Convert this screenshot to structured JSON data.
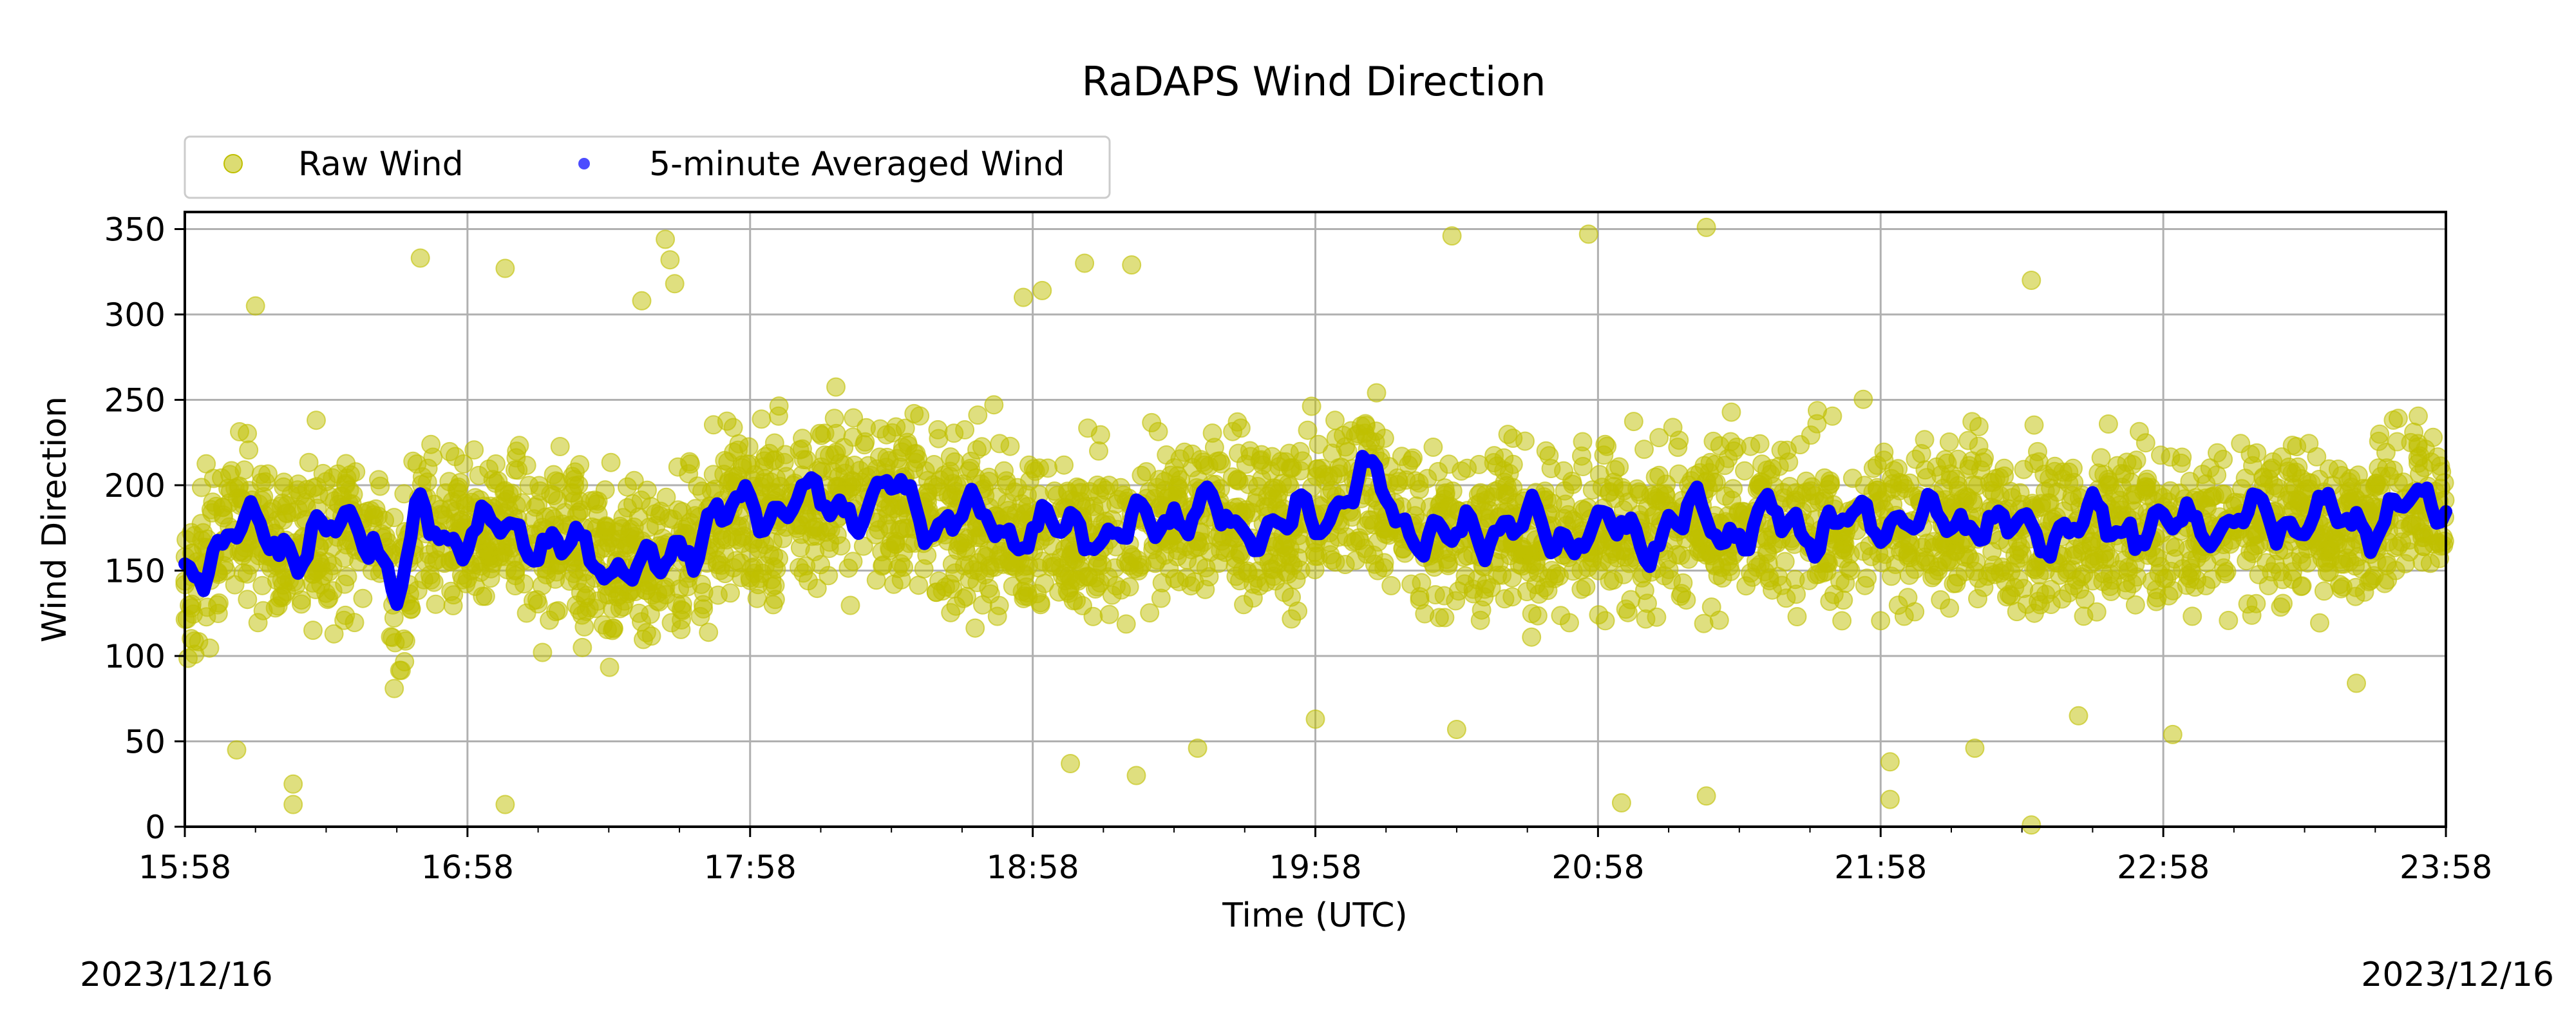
{
  "chart_data": {
    "type": "scatter",
    "title": "RaDAPS Wind Direction",
    "xlabel": "Time (UTC)",
    "ylabel": "Wind Direction",
    "xlim": [
      "15:58",
      "23:58"
    ],
    "ylim": [
      0,
      360
    ],
    "xticks": [
      "15:58",
      "16:58",
      "17:58",
      "18:58",
      "19:58",
      "20:58",
      "21:58",
      "22:58",
      "23:58"
    ],
    "yticks": [
      0,
      50,
      100,
      150,
      200,
      250,
      300,
      350
    ],
    "grid": true,
    "legend": {
      "placement": "top-left",
      "entries": [
        "Raw Wind",
        "5-minute Averaged Wind"
      ]
    },
    "dates": {
      "left": "2023/12/16",
      "right": "2023/12/16"
    },
    "colors": {
      "raw": "#bfbf00",
      "averaged": "#0000ff"
    },
    "series": [
      {
        "name": "Raw Wind",
        "kind": "scatter",
        "typical_center": 175,
        "typical_spread": [
          100,
          250
        ],
        "outliers": [
          {
            "x": "16:48",
            "y": 333
          },
          {
            "x": "17:06",
            "y": 327
          },
          {
            "x": "17:40",
            "y": 344
          },
          {
            "x": "17:41",
            "y": 332
          },
          {
            "x": "17:42",
            "y": 318
          },
          {
            "x": "17:35",
            "y": 308
          },
          {
            "x": "16:13",
            "y": 305
          },
          {
            "x": "20:27",
            "y": 346
          },
          {
            "x": "20:56",
            "y": 347
          },
          {
            "x": "21:21",
            "y": 351
          },
          {
            "x": "19:19",
            "y": 329
          },
          {
            "x": "19:09",
            "y": 330
          },
          {
            "x": "22:30",
            "y": 320
          },
          {
            "x": "19:00",
            "y": 314
          },
          {
            "x": "18:56",
            "y": 310
          },
          {
            "x": "16:09",
            "y": 45
          },
          {
            "x": "16:21",
            "y": 25
          },
          {
            "x": "16:21",
            "y": 13
          },
          {
            "x": "17:06",
            "y": 13
          },
          {
            "x": "19:06",
            "y": 37
          },
          {
            "x": "19:20",
            "y": 30
          },
          {
            "x": "21:03",
            "y": 14
          },
          {
            "x": "21:21",
            "y": 18
          },
          {
            "x": "22:00",
            "y": 16
          },
          {
            "x": "22:00",
            "y": 38
          },
          {
            "x": "22:30",
            "y": 1
          },
          {
            "x": "22:18",
            "y": 46
          },
          {
            "x": "23:00",
            "y": 54
          },
          {
            "x": "23:39",
            "y": 84
          },
          {
            "x": "20:28",
            "y": 57
          },
          {
            "x": "19:33",
            "y": 46
          },
          {
            "x": "19:58",
            "y": 63
          },
          {
            "x": "22:40",
            "y": 65
          }
        ]
      },
      {
        "name": "5-minute Averaged Wind",
        "kind": "line",
        "x": [
          "15:58",
          "16:08",
          "16:18",
          "16:28",
          "16:38",
          "16:43",
          "16:48",
          "16:58",
          "17:08",
          "17:18",
          "17:28",
          "17:38",
          "17:48",
          "17:58",
          "18:08",
          "18:18",
          "18:28",
          "18:38",
          "18:48",
          "18:58",
          "19:08",
          "19:18",
          "19:28",
          "19:38",
          "19:48",
          "19:58",
          "20:08",
          "20:18",
          "20:28",
          "20:38",
          "20:48",
          "20:58",
          "21:08",
          "21:18",
          "21:28",
          "21:38",
          "21:48",
          "21:58",
          "22:08",
          "22:18",
          "22:28",
          "22:38",
          "22:48",
          "22:58",
          "23:08",
          "23:18",
          "23:28",
          "23:38",
          "23:48",
          "23:58"
        ],
        "values": [
          145,
          175,
          165,
          170,
          178,
          130,
          180,
          168,
          175,
          162,
          155,
          150,
          175,
          185,
          190,
          188,
          195,
          180,
          178,
          170,
          175,
          170,
          185,
          180,
          175,
          180,
          205,
          175,
          168,
          180,
          170,
          175,
          172,
          180,
          175,
          178,
          175,
          180,
          178,
          182,
          170,
          175,
          178,
          175,
          180,
          178,
          182,
          175,
          185,
          190
        ]
      }
    ]
  }
}
